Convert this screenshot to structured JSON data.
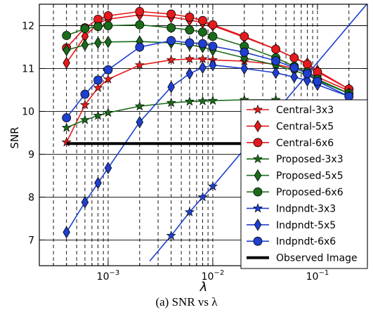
{
  "caption": "(a) SNR vs λ",
  "chart_data": {
    "type": "line",
    "x_scale": "log",
    "xlabel": "λ",
    "ylabel": "SNR",
    "xlim": [
      0.00022,
      0.3
    ],
    "ylim": [
      6.4,
      12.5
    ],
    "x_tick_labels": [
      {
        "value": 0.001,
        "base": "10",
        "exp": "−3"
      },
      {
        "value": 0.01,
        "base": "10",
        "exp": "−2"
      },
      {
        "value": 0.1,
        "base": "10",
        "exp": "−1"
      }
    ],
    "y_ticks": [
      7,
      8,
      9,
      10,
      11,
      12
    ],
    "grid": true,
    "legend_position": "lower-right",
    "series": [
      {
        "name": "Central-3x3",
        "color": "#e41a1c",
        "marker": "star",
        "x": [
          0.0004,
          0.0006,
          0.0008,
          0.001,
          0.002,
          0.004,
          0.006,
          0.008,
          0.01,
          0.02,
          0.04,
          0.06,
          0.08,
          0.1,
          0.2
        ],
        "y": [
          9.28,
          10.15,
          10.55,
          10.75,
          11.08,
          11.2,
          11.22,
          11.22,
          11.2,
          11.17,
          11.1,
          11.0,
          10.9,
          10.8,
          10.48
        ]
      },
      {
        "name": "Central-5x5",
        "color": "#e41a1c",
        "marker": "diamond",
        "x": [
          0.0004,
          0.0006,
          0.0008,
          0.001,
          0.002,
          0.004,
          0.006,
          0.008,
          0.01,
          0.02,
          0.04,
          0.06,
          0.08,
          0.1,
          0.2
        ],
        "y": [
          11.13,
          11.75,
          12.05,
          12.15,
          12.25,
          12.2,
          12.13,
          12.07,
          12.0,
          11.73,
          11.45,
          11.25,
          11.12,
          10.95,
          10.52
        ]
      },
      {
        "name": "Central-6x6",
        "color": "#e41a1c",
        "marker": "circle",
        "x": [
          0.0004,
          0.0006,
          0.0008,
          0.001,
          0.002,
          0.004,
          0.006,
          0.008,
          0.01,
          0.02,
          0.04,
          0.06,
          0.08,
          0.1,
          0.2
        ],
        "y": [
          11.48,
          11.95,
          12.15,
          12.23,
          12.33,
          12.27,
          12.2,
          12.12,
          12.02,
          11.75,
          11.45,
          11.25,
          11.1,
          10.92,
          10.52
        ]
      },
      {
        "name": "Proposed-3x3",
        "color": "#1a6b1a",
        "marker": "star",
        "x": [
          0.0004,
          0.0006,
          0.0008,
          0.001,
          0.002,
          0.004,
          0.006,
          0.008,
          0.01,
          0.02,
          0.04
        ],
        "y": [
          9.62,
          9.8,
          9.9,
          9.97,
          10.12,
          10.2,
          10.23,
          10.24,
          10.25,
          10.27,
          10.27
        ]
      },
      {
        "name": "Proposed-5x5",
        "color": "#1a6b1a",
        "marker": "diamond",
        "x": [
          0.0004,
          0.0006,
          0.0008,
          0.001,
          0.002,
          0.004,
          0.006,
          0.008,
          0.01,
          0.02,
          0.04,
          0.06,
          0.08,
          0.1,
          0.2
        ],
        "y": [
          11.43,
          11.55,
          11.6,
          11.62,
          11.63,
          11.6,
          11.55,
          11.5,
          11.43,
          11.25,
          11.08,
          10.95,
          10.85,
          10.72,
          10.42
        ]
      },
      {
        "name": "Proposed-6x6",
        "color": "#1a6b1a",
        "marker": "circle",
        "x": [
          0.0004,
          0.0006,
          0.0008,
          0.001,
          0.002,
          0.004,
          0.006,
          0.008,
          0.01,
          0.02,
          0.04,
          0.06,
          0.08,
          0.1,
          0.2
        ],
        "y": [
          11.77,
          11.93,
          11.98,
          12.0,
          12.02,
          11.95,
          11.9,
          11.85,
          11.75,
          11.52,
          11.25,
          11.05,
          10.92,
          10.75,
          10.42
        ]
      },
      {
        "name": "Indpndt-3x3",
        "color": "#1f3fcf",
        "marker": "star",
        "x": [
          0.004,
          0.006,
          0.008,
          0.01
        ],
        "y": [
          7.1,
          7.65,
          8.0,
          8.25
        ]
      },
      {
        "name": "Indpndt-5x5",
        "color": "#1f3fcf",
        "marker": "diamond",
        "x": [
          0.0004,
          0.0006,
          0.0008,
          0.001,
          0.002,
          0.004,
          0.006,
          0.008,
          0.01,
          0.02,
          0.04,
          0.06,
          0.08,
          0.1,
          0.2
        ],
        "y": [
          7.18,
          7.88,
          8.33,
          8.68,
          9.75,
          10.57,
          10.88,
          11.02,
          11.08,
          11.0,
          10.9,
          10.8,
          10.72,
          10.62,
          10.35
        ]
      },
      {
        "name": "Indpndt-6x6",
        "color": "#1f3fcf",
        "marker": "circle",
        "x": [
          0.0004,
          0.0006,
          0.0008,
          0.001,
          0.002,
          0.004,
          0.006,
          0.008,
          0.01,
          0.02,
          0.04,
          0.06,
          0.08,
          0.1,
          0.2
        ],
        "y": [
          9.85,
          10.4,
          10.73,
          10.97,
          11.5,
          11.65,
          11.6,
          11.58,
          11.52,
          11.38,
          11.18,
          11.02,
          10.88,
          10.7,
          10.35
        ]
      },
      {
        "name": "Observed Image",
        "color": "#000000",
        "marker": "none",
        "thick": true,
        "x": [
          0.0004,
          0.2
        ],
        "y": [
          9.25,
          9.25
        ]
      }
    ]
  }
}
